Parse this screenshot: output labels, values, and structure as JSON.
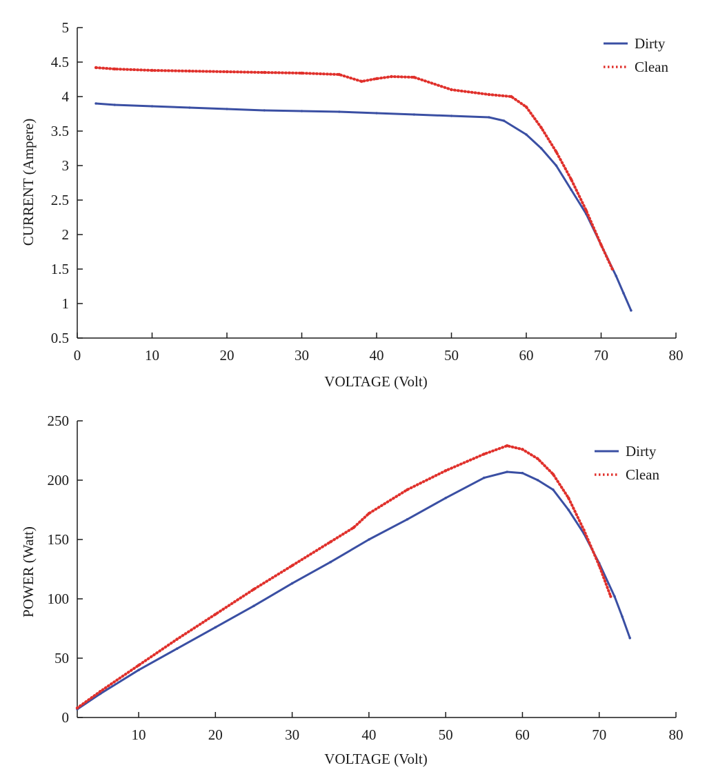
{
  "chart_data": [
    {
      "type": "line",
      "xlabel": "VOLTAGE (Volt)",
      "ylabel": "CURRENT (Ampere)",
      "xlim": [
        0,
        80
      ],
      "ylim": [
        0.5,
        5
      ],
      "x_ticks": [
        "0",
        "10",
        "20",
        "30",
        "40",
        "50",
        "60",
        "70",
        "80"
      ],
      "y_ticks": [
        "0.5",
        "1",
        "1.5",
        "2",
        "2.5",
        "3",
        "3.5",
        "4",
        "4.5",
        "5"
      ],
      "grid": false,
      "legend_position": "top-right",
      "series": [
        {
          "name": "Dirty",
          "style": "solid",
          "color": "#3a4fa3",
          "x": [
            2.5,
            5,
            10,
            15,
            20,
            25,
            30,
            35,
            40,
            45,
            50,
            55,
            57,
            60,
            62,
            64,
            66,
            68,
            70,
            72,
            73,
            74
          ],
          "y": [
            3.9,
            3.88,
            3.86,
            3.84,
            3.82,
            3.8,
            3.79,
            3.78,
            3.76,
            3.74,
            3.72,
            3.7,
            3.65,
            3.45,
            3.25,
            3.0,
            2.65,
            2.3,
            1.85,
            1.4,
            1.15,
            0.9
          ]
        },
        {
          "name": "Clean",
          "style": "dotted",
          "color": "#e0302b",
          "x": [
            2.5,
            5,
            10,
            15,
            20,
            25,
            30,
            35,
            38,
            40,
            42,
            45,
            50,
            55,
            58,
            60,
            62,
            64,
            66,
            68,
            70,
            71.5
          ],
          "y": [
            4.42,
            4.4,
            4.38,
            4.37,
            4.36,
            4.35,
            4.34,
            4.32,
            4.22,
            4.26,
            4.29,
            4.28,
            4.1,
            4.03,
            4.0,
            3.85,
            3.55,
            3.2,
            2.8,
            2.35,
            1.85,
            1.5
          ]
        }
      ]
    },
    {
      "type": "line",
      "xlabel": "VOLTAGE (Volt)",
      "ylabel": "POWER (Watt)",
      "xlim": [
        2,
        80
      ],
      "ylim": [
        0,
        250
      ],
      "x_ticks": [
        "10",
        "20",
        "30",
        "40",
        "50",
        "60",
        "70",
        "80"
      ],
      "y_ticks": [
        "0",
        "50",
        "100",
        "150",
        "200",
        "250"
      ],
      "grid": false,
      "legend_position": "top-right",
      "series": [
        {
          "name": "Dirty",
          "style": "solid",
          "color": "#3a4fa3",
          "x": [
            2,
            5,
            10,
            15,
            20,
            25,
            30,
            35,
            40,
            45,
            50,
            55,
            58,
            60,
            62,
            64,
            66,
            68,
            70,
            72,
            73,
            74
          ],
          "y": [
            7,
            20,
            40,
            58,
            76,
            94,
            113,
            131,
            150,
            167,
            185,
            202,
            207,
            206,
            200,
            192,
            175,
            155,
            130,
            102,
            85,
            67
          ]
        },
        {
          "name": "Clean",
          "style": "dotted",
          "color": "#e0302b",
          "x": [
            2,
            5,
            10,
            15,
            20,
            25,
            30,
            35,
            38,
            40,
            45,
            50,
            55,
            58,
            60,
            62,
            64,
            66,
            68,
            70,
            71.5
          ],
          "y": [
            8,
            22,
            44,
            66,
            87,
            108,
            128,
            148,
            160,
            172,
            192,
            208,
            222,
            229,
            226,
            218,
            205,
            185,
            158,
            128,
            102
          ]
        }
      ]
    }
  ]
}
